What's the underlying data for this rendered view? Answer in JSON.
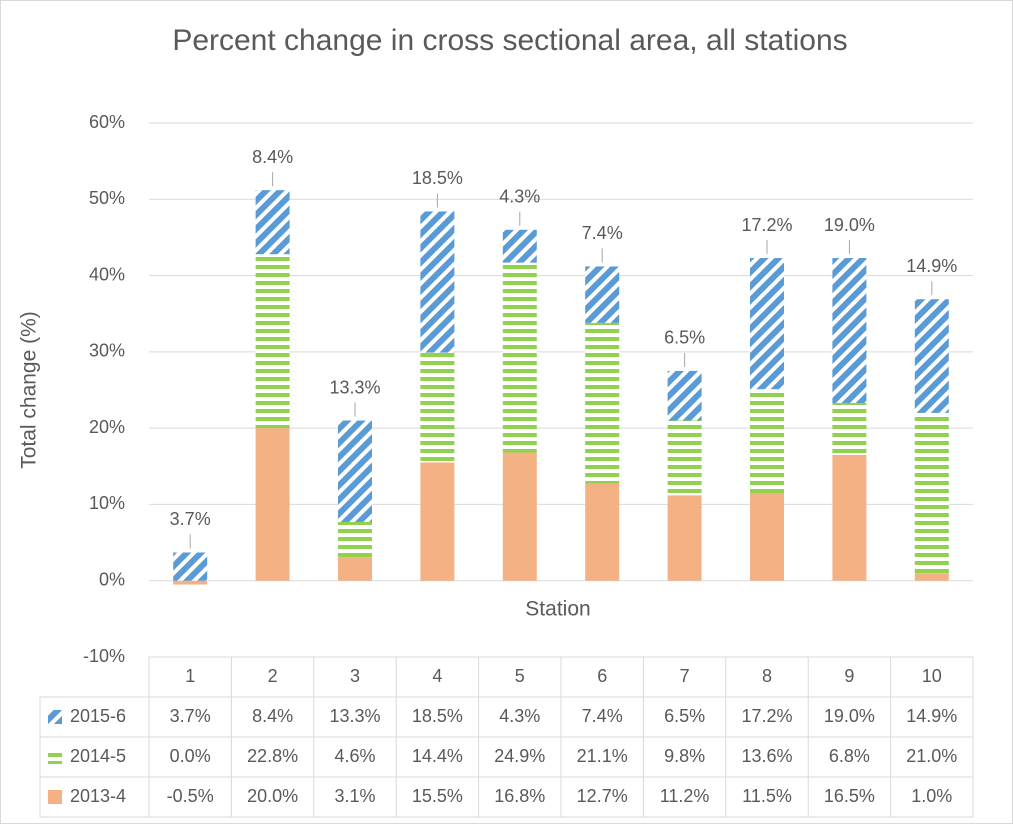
{
  "chart_data": {
    "type": "stacked_bar",
    "title": "Percent change in cross sectional area, all stations",
    "x_label": "Station",
    "y_label": "Total change (%)",
    "categories": [
      "1",
      "2",
      "3",
      "4",
      "5",
      "6",
      "7",
      "8",
      "9",
      "10"
    ],
    "series": [
      {
        "name": "2013-4",
        "color": "#f4b183",
        "values": [
          -0.5,
          20.0,
          3.1,
          15.5,
          16.8,
          12.7,
          11.2,
          11.5,
          16.5,
          1.0
        ],
        "value_labels": [
          "-0.5%",
          "20.0%",
          "3.1%",
          "15.5%",
          "16.8%",
          "12.7%",
          "11.2%",
          "11.5%",
          "16.5%",
          "1.0%"
        ]
      },
      {
        "name": "2014-5",
        "color": "#92d050",
        "values": [
          0.0,
          22.8,
          4.6,
          14.4,
          24.9,
          21.1,
          9.8,
          13.6,
          6.8,
          21.0
        ],
        "value_labels": [
          "0.0%",
          "22.8%",
          "4.6%",
          "14.4%",
          "24.9%",
          "21.1%",
          "9.8%",
          "13.6%",
          "6.8%",
          "21.0%"
        ]
      },
      {
        "name": "2015-6",
        "color": "#5b9bd5",
        "values": [
          3.7,
          8.4,
          13.3,
          18.5,
          4.3,
          7.4,
          6.5,
          17.2,
          19.0,
          14.9
        ],
        "value_labels": [
          "3.7%",
          "8.4%",
          "13.3%",
          "18.5%",
          "4.3%",
          "7.4%",
          "6.5%",
          "17.2%",
          "19.0%",
          "14.9%"
        ]
      }
    ],
    "ylim": [
      -10,
      60
    ],
    "yticks": [
      {
        "value": -10,
        "label": "-10%"
      },
      {
        "value": 0,
        "label": "0%"
      },
      {
        "value": 10,
        "label": "10%"
      },
      {
        "value": 20,
        "label": "20%"
      },
      {
        "value": 30,
        "label": "30%"
      },
      {
        "value": 40,
        "label": "40%"
      },
      {
        "value": 50,
        "label": "50%"
      },
      {
        "value": 60,
        "label": "60%"
      }
    ],
    "grid": true
  }
}
